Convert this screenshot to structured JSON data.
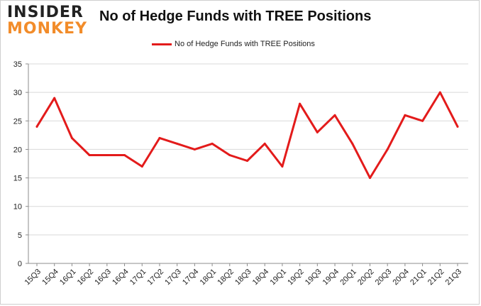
{
  "logo": {
    "line1": "INSIDER",
    "line2": "MONKEY"
  },
  "colors": {
    "series": "#e31b1b",
    "grid": "#d9d9d9",
    "axis": "#8c8c8c",
    "logo_accent": "#f28c2a"
  },
  "chart_data": {
    "type": "line",
    "title": "No of Hedge Funds with TREE Positions",
    "xlabel": "",
    "ylabel": "",
    "ylim": [
      0,
      35
    ],
    "yticks": [
      0,
      5,
      10,
      15,
      20,
      25,
      30,
      35
    ],
    "grid": true,
    "legend_position": "top-center",
    "categories": [
      "15Q3",
      "15Q4",
      "16Q1",
      "16Q2",
      "16Q3",
      "16Q4",
      "17Q1",
      "17Q2",
      "17Q3",
      "17Q4",
      "18Q1",
      "18Q2",
      "18Q3",
      "18Q4",
      "19Q1",
      "19Q2",
      "19Q3",
      "19Q4",
      "20Q1",
      "20Q2",
      "20Q3",
      "20Q4",
      "21Q1",
      "21Q2",
      "21Q3"
    ],
    "series": [
      {
        "name": "No of Hedge Funds with TREE Positions",
        "values": [
          24,
          29,
          22,
          19,
          19,
          19,
          17,
          22,
          21,
          20,
          21,
          19,
          18,
          21,
          17,
          28,
          23,
          26,
          21,
          15,
          20,
          26,
          25,
          30,
          24
        ]
      }
    ]
  }
}
